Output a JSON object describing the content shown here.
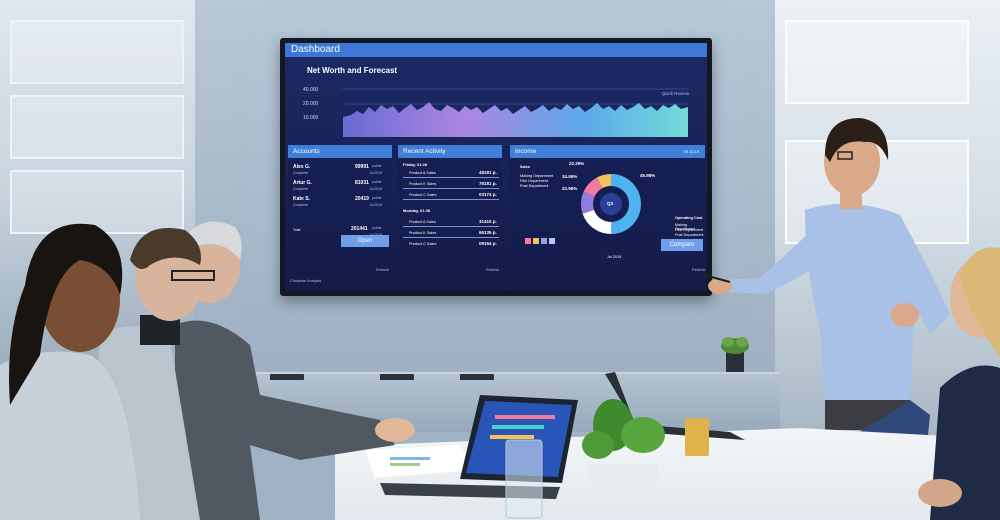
{
  "dashboard": {
    "title": "Dashboard",
    "net_worth": {
      "title": "Net Worth and Forecast",
      "quick_review": "Quick Review",
      "y_ticks": [
        "40.000",
        "20.000",
        "10.000"
      ]
    },
    "accounts": {
      "header": "Accounts",
      "rows": [
        {
          "name": "Alex G.",
          "sub": "Complete",
          "value": "99991",
          "unit": "points",
          "date": "Jul 2019"
        },
        {
          "name": "Artur G.",
          "sub": "Complete",
          "value": "81031",
          "unit": "points",
          "date": "Jul 2019"
        },
        {
          "name": "Kate S.",
          "sub": "Complete",
          "value": "20419",
          "unit": "points",
          "date": "Jul 2019"
        }
      ],
      "total_label": "Total",
      "total_value": "201441",
      "total_unit": "points",
      "total_date": "Jul 2019",
      "open_button": "Open",
      "footer_left": "Complete Analysis",
      "footer_right": "Refresh"
    },
    "recent_activity": {
      "header": "Recent Activity",
      "groups": [
        {
          "day": "Friday, 01.08",
          "items": [
            {
              "label": "Product A Sales",
              "value": "48181 p."
            },
            {
              "label": "Product K Sales",
              "value": "78181 p."
            },
            {
              "label": "Product C Sales",
              "value": "03174 p."
            }
          ]
        },
        {
          "day": "Monday, 01.08",
          "items": [
            {
              "label": "Product A Sales",
              "value": "31415 p."
            },
            {
              "label": "Product K Sales",
              "value": "65135 p."
            },
            {
              "label": "Product C Sales",
              "value": "09154 p."
            }
          ]
        }
      ],
      "footer_right": "Refresh"
    },
    "income": {
      "header": "Income",
      "header_right": "09.11.19",
      "sales_label": "Sales",
      "departments": [
        "Making Department",
        "Film Department",
        "Post Department"
      ],
      "percents": [
        "22.29%",
        "34.55%",
        "22.96%",
        "45.98%"
      ],
      "center_label": "Q3",
      "month_label": "Jul 2019",
      "operating_label": "Operating Cost",
      "operating_departments": [
        "Making Department",
        "Film Department",
        "Post Department"
      ],
      "compare_button": "Compare",
      "footer_right": "Refresh",
      "colors": [
        "#4fb3f2",
        "#8f7ee0",
        "#f07aa0",
        "#f4c35a",
        "#ffffff"
      ]
    }
  }
}
